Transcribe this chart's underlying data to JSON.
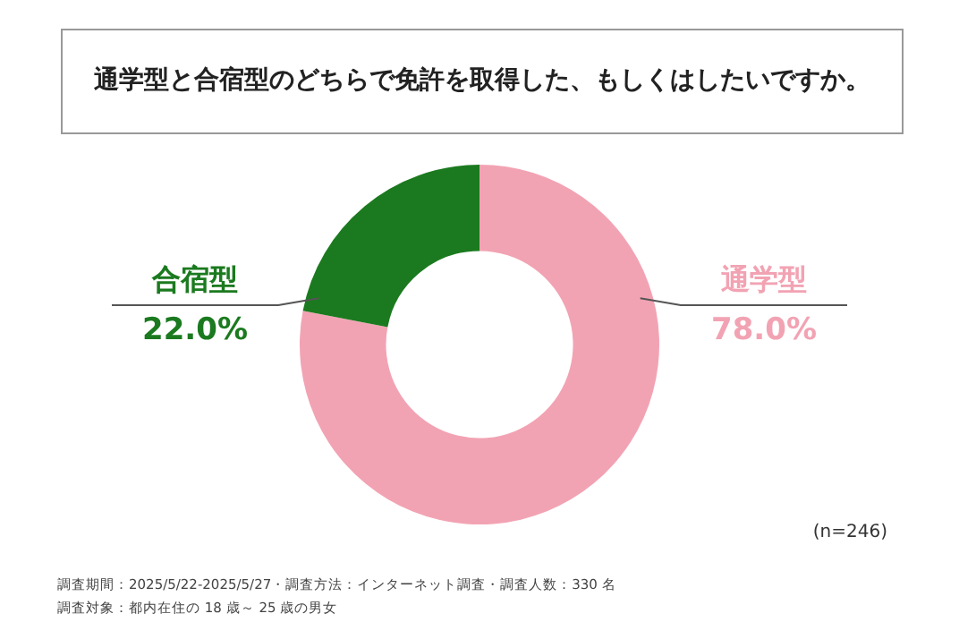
{
  "chart_data": {
    "type": "donut",
    "title": "通学型と合宿型のどちらで免許を取得した、もしくはしたいですか。",
    "categories": [
      "通学型",
      "合宿型"
    ],
    "values": [
      78.0,
      22.0
    ],
    "colors": [
      "#f2a3b3",
      "#1b7a1f"
    ],
    "value_labels": [
      "78.0%",
      "22.0%"
    ],
    "annotations": [
      "(n=246)",
      "調査期間：2025/5/22-2025/5/27・調査方法：インターネット調査・調査人数：330 名",
      "調査対象：都内在住の 18 歳～ 25 歳の男女"
    ]
  }
}
